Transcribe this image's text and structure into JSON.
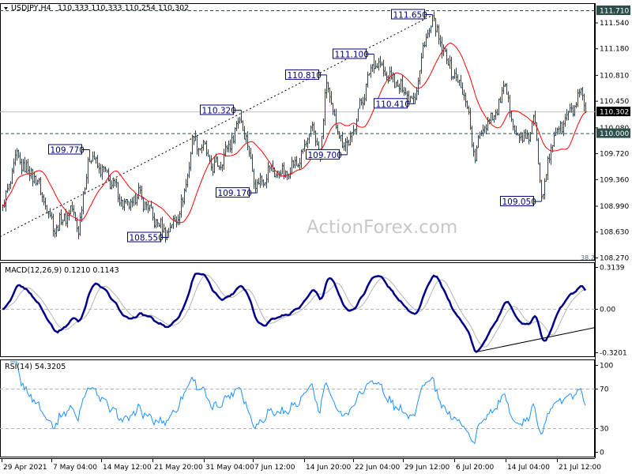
{
  "header": {
    "symbol": "USDJPY,H4",
    "ohlc": "110.333 110.333 110.254 110.302"
  },
  "watermark": "ActionForex.com",
  "colors": {
    "bars": "#1d4a60",
    "moving_average": "#ff0000",
    "macd": "#00008b",
    "signal": "#b4b4b4",
    "rsi": "#1e90ff",
    "label_border": "#000080",
    "level_tag_bg": "#2f4f4f",
    "price_tag_bg": "#000000"
  },
  "chart_data": [
    {
      "type": "ohlc",
      "symbol": "USDJPY",
      "timeframe": "H4",
      "ylim": [
        108.27,
        111.71
      ],
      "y_ticks": [
        "111.540",
        "111.180",
        "110.810",
        "110.450",
        "110.080",
        "109.720",
        "109.360",
        "108.990",
        "108.630",
        "108.270"
      ],
      "current_price": "110.302",
      "horizontal_levels": [
        "111.710",
        "110.000"
      ],
      "fib_label": "38.2",
      "x_ticks": [
        "29 Apr 2021",
        "7 May 04:00",
        "14 May 12:00",
        "21 May 20:00",
        "31 May 04:00",
        "7 Jun 12:00",
        "14 Jun 20:00",
        "22 Jun 04:00",
        "29 Jun 12:00",
        "6 Jul 20:00",
        "14 Jul 04:00",
        "21 Jul 12:00"
      ],
      "moving_average": {
        "type": "SMA",
        "color": "#ff0000"
      },
      "swing_points": [
        {
          "time": "29 Apr 04:00",
          "price": 108.94
        },
        {
          "time": "1 May 08:00",
          "price": 109.65
        },
        {
          "time": "4 May 12:00",
          "price": 109.38
        },
        {
          "time": "7 May 16:00",
          "price": 108.67
        },
        {
          "time": "10 May 00:00",
          "price": 108.94
        },
        {
          "time": "11 May 04:00",
          "price": 108.67
        },
        {
          "time": "12 May 16:00",
          "price": 109.7
        },
        {
          "time": "15 May 20:00",
          "price": 109.33
        },
        {
          "time": "18 May 04:00",
          "price": 108.94
        },
        {
          "time": "19 May 20:00",
          "price": 109.16
        },
        {
          "time": "22 May 20:00",
          "price": 108.72
        },
        {
          "time": "24 May 16:00",
          "price": 108.62
        },
        {
          "time": "27 May 04:00",
          "price": 109.0
        },
        {
          "time": "29 May 04:00",
          "price": 109.93
        },
        {
          "time": "31 May 08:00",
          "price": 109.76
        },
        {
          "time": "1 Jun 12:00",
          "price": 109.49
        },
        {
          "time": "3 Jun 08:00",
          "price": 109.71
        },
        {
          "time": "5 Jun 16:00",
          "price": 110.24
        },
        {
          "time": "8 Jun 00:00",
          "price": 109.25
        },
        {
          "time": "9 Jun 16:00",
          "price": 109.49
        },
        {
          "time": "12 Jun 00:00",
          "price": 109.43
        },
        {
          "time": "14 Jun 08:00",
          "price": 109.65
        },
        {
          "time": "16 Jun 00:00",
          "price": 110.09
        },
        {
          "time": "17 Jun 04:00",
          "price": 109.65
        },
        {
          "time": "18 Jun 04:00",
          "price": 110.72
        },
        {
          "time": "19 Jun 12:00",
          "price": 110.09
        },
        {
          "time": "21 Jun 08:00",
          "price": 109.8
        },
        {
          "time": "25 Jun 04:00",
          "price": 111.02
        },
        {
          "time": "27 Jun 04:00",
          "price": 110.8
        },
        {
          "time": "29 Jun 00:00",
          "price": 110.64
        },
        {
          "time": "1 Jul 04:00",
          "price": 110.48
        },
        {
          "time": "2 Jul 08:00",
          "price": 111.18
        },
        {
          "time": "3 Jul 16:00",
          "price": 111.57
        },
        {
          "time": "5 Jul 00:00",
          "price": 111.18
        },
        {
          "time": "6 Jul 20:00",
          "price": 110.8
        },
        {
          "time": "8 Jul 12:00",
          "price": 110.47
        },
        {
          "time": "9 Jul 16:00",
          "price": 109.65
        },
        {
          "time": "11 Jul 00:00",
          "price": 110.14
        },
        {
          "time": "12 Jul 12:00",
          "price": 110.25
        },
        {
          "time": "14 Jul 04:00",
          "price": 110.64
        },
        {
          "time": "15 Jul 08:00",
          "price": 110.04
        },
        {
          "time": "17 Jul 00:00",
          "price": 109.87
        },
        {
          "time": "18 Jul 04:00",
          "price": 110.2
        },
        {
          "time": "19 Jul 08:00",
          "price": 109.15
        },
        {
          "time": "21 Jul 00:00",
          "price": 109.98
        },
        {
          "time": "22 Jul 08:00",
          "price": 110.14
        },
        {
          "time": "25 Jul 00:00",
          "price": 110.53
        },
        {
          "time": "25 Jul 16:00",
          "price": 110.3
        }
      ],
      "labels": [
        {
          "text": "109.770",
          "time": "12 May 16:00",
          "price": 109.77,
          "kind": "high"
        },
        {
          "text": "108.550",
          "time": "24 May 16:00",
          "price": 108.55,
          "kind": "low"
        },
        {
          "text": "110.320",
          "time": "5 Jun 16:00",
          "price": 110.32,
          "kind": "high"
        },
        {
          "text": "109.170",
          "time": "8 Jun 00:00",
          "price": 109.17,
          "kind": "low"
        },
        {
          "text": "110.810",
          "time": "18 Jun 04:00",
          "price": 110.81,
          "kind": "high"
        },
        {
          "text": "109.700",
          "time": "21 Jun 08:00",
          "price": 109.7,
          "kind": "low"
        },
        {
          "text": "111.100",
          "time": "25 Jun 04:00",
          "price": 111.1,
          "kind": "high"
        },
        {
          "text": "110.410",
          "time": "1 Jul 04:00",
          "price": 110.41,
          "kind": "low"
        },
        {
          "text": "111.650",
          "time": "3 Jul 16:00",
          "price": 111.65,
          "kind": "high"
        },
        {
          "text": "109.050",
          "time": "19 Jul 08:00",
          "price": 109.05,
          "kind": "low"
        }
      ],
      "trendline": {
        "from": {
          "time": "28 Apr 18:00",
          "price": 108.56
        },
        "to": {
          "time": "3 Jul 12:00",
          "price": 111.63
        },
        "style": "dotted"
      }
    },
    {
      "type": "line",
      "title": "MACD(12,26,9) 0.1210 0.1143",
      "ylim": [
        -0.3201,
        0.3139
      ],
      "y_ticks": [
        "0.3139",
        "0.00",
        "-0.3201"
      ],
      "series": [
        {
          "name": "MACD",
          "computed_from": "close",
          "color": "#00008b"
        },
        {
          "name": "Signal",
          "computed_from": "MACD",
          "color": "#b4b4b4"
        }
      ],
      "trendline": {
        "from": {
          "time": "10 Jul 00:00",
          "value": -0.3201
        },
        "to": {
          "time": "27 Jul 00:00",
          "value": -0.138
        }
      }
    },
    {
      "type": "line",
      "title": "RSI(14) 54.3205",
      "ylim": [
        0,
        100
      ],
      "y_ticks": [
        "100",
        "70",
        "30",
        "0"
      ],
      "levels": [
        70,
        30
      ],
      "series": [
        {
          "name": "RSI",
          "computed_from": "close",
          "color": "#1e90ff"
        }
      ]
    }
  ]
}
